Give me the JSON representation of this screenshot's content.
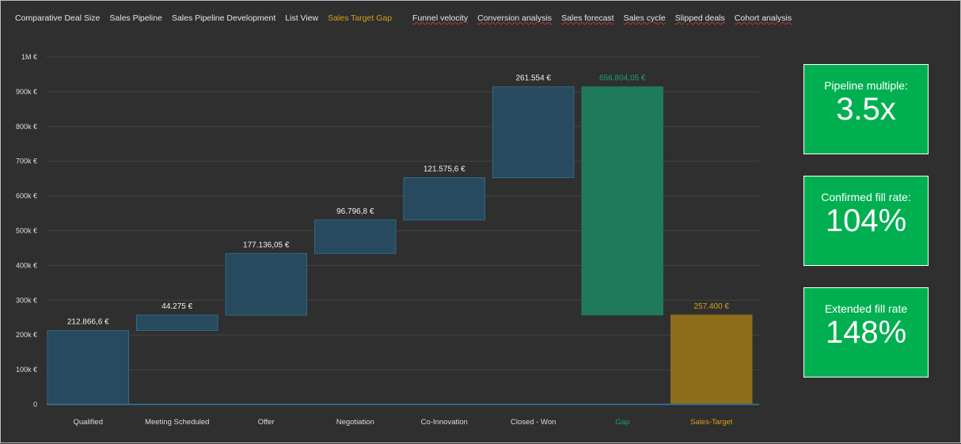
{
  "nav": {
    "tabs": [
      {
        "label": "Comparative Deal Size",
        "active": false,
        "spell": false
      },
      {
        "label": "Sales Pipeline",
        "active": false,
        "spell": false
      },
      {
        "label": "Sales Pipeline Development",
        "active": false,
        "spell": false
      },
      {
        "label": "List View",
        "active": false,
        "spell": false
      },
      {
        "label": "Sales Target Gap",
        "active": true,
        "spell": false
      },
      {
        "label": "Funnel velocity",
        "active": false,
        "spell": true
      },
      {
        "label": "Conversion analysis",
        "active": false,
        "spell": true
      },
      {
        "label": "Sales forecast",
        "active": false,
        "spell": true
      },
      {
        "label": "Sales cycle",
        "active": false,
        "spell": true
      },
      {
        "label": "Slipped deals",
        "active": false,
        "spell": true
      },
      {
        "label": "Cohort analysis",
        "active": false,
        "spell": true
      }
    ],
    "active_color": "#d4a017"
  },
  "kpis": [
    {
      "label": "Pipeline multiple:",
      "value": "3.5x"
    },
    {
      "label": "Confirmed fill rate:",
      "value": "104%"
    },
    {
      "label": "Extended fill rate",
      "value": "148%"
    }
  ],
  "chart_data": {
    "type": "waterfall",
    "ylim": [
      0,
      1000000
    ],
    "yticks": [
      0,
      100000,
      200000,
      300000,
      400000,
      500000,
      600000,
      700000,
      800000,
      900000,
      1000000
    ],
    "ytick_labels": [
      "0",
      "100k €",
      "200k €",
      "300k €",
      "400k €",
      "500k €",
      "600k €",
      "700k €",
      "800k €",
      "900k €",
      "1M €"
    ],
    "grid": true,
    "categories": [
      "Qualified",
      "Meeting Scheduled",
      "Offer",
      "Negotiation",
      "Co-Innovation",
      "Closed - Won",
      "Gap",
      "Sales-Target"
    ],
    "bars": [
      {
        "start": 0,
        "end": 212866.6,
        "label": "212.866,6 €",
        "kind": "step"
      },
      {
        "start": 212866.6,
        "end": 257141.6,
        "label": "44.275 €",
        "kind": "step"
      },
      {
        "start": 257141.6,
        "end": 434277.65,
        "label": "177.136,05 €",
        "kind": "step"
      },
      {
        "start": 434277.65,
        "end": 531074.45,
        "label": "96.796,8 €",
        "kind": "step"
      },
      {
        "start": 531074.45,
        "end": 652650.05,
        "label": "121.575,6 €",
        "kind": "step"
      },
      {
        "start": 652650.05,
        "end": 914204.05,
        "label": "261.554 €",
        "kind": "step"
      },
      {
        "start": 257400,
        "end": 914204.05,
        "label": "656.804,05 €",
        "kind": "gap"
      },
      {
        "start": 0,
        "end": 257400,
        "label": "257.400 €",
        "kind": "target"
      }
    ],
    "colors": {
      "step": "#284a5e",
      "gap": "#1f7a5c",
      "target": "#8c6d1a",
      "gap_text": "#1aa07a",
      "target_text": "#d4a017"
    }
  }
}
